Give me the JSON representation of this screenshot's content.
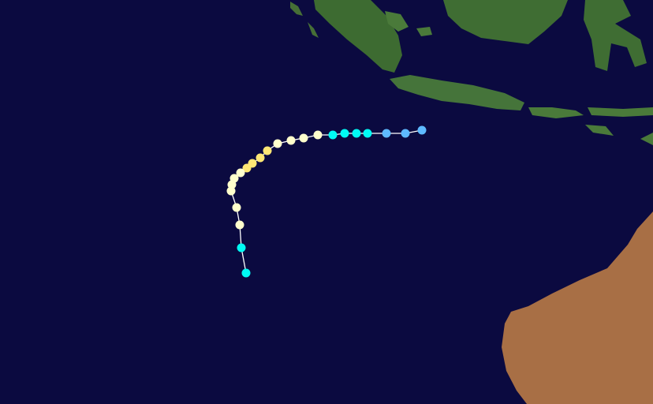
{
  "background": "#0b0a40",
  "track": {
    "line_color": "#ffffff",
    "points": [
      "#5ebaff",
      "#5ebaff",
      "#5ebaff",
      "#00faf4",
      "#00faf4",
      "#00faf4",
      "#00faf4",
      "#ffffcc",
      "#ffffcc",
      "#ffffcc",
      "#ffffcc",
      "#ffe775",
      "#ffe775",
      "#ffe775",
      "#ffe775",
      "#ffffcc",
      "#ffffcc",
      "#ffffcc",
      "#ffffcc",
      "#ffffcc",
      "#ffffcc",
      "#00faf4",
      "#00faf4"
    ]
  }
}
